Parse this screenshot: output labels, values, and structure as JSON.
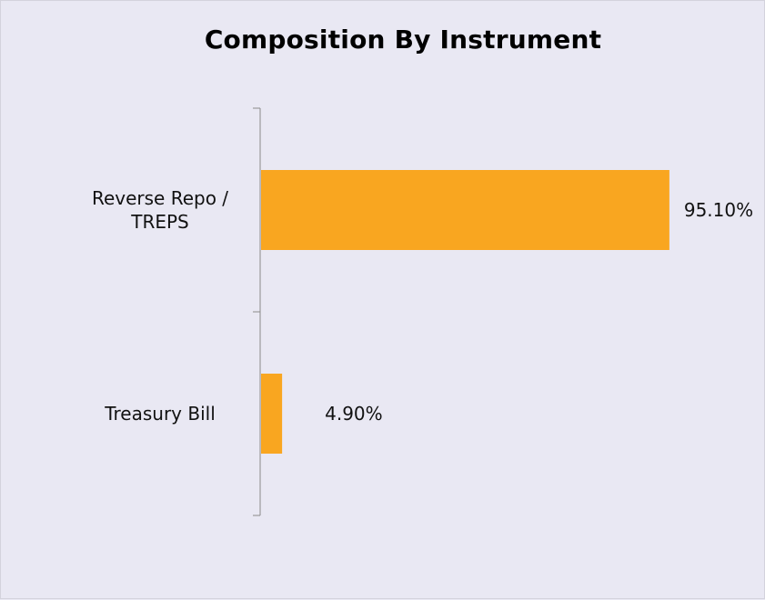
{
  "chart_data": {
    "type": "bar",
    "orientation": "horizontal",
    "title": "Composition By Instrument",
    "xlabel": "",
    "ylabel": "",
    "categories": [
      [
        "Reverse Repo /",
        "TREPS"
      ],
      [
        "Treasury Bill"
      ]
    ],
    "values": [
      95.1,
      4.9
    ],
    "value_labels": [
      "95.10%",
      "4.90%"
    ],
    "xlim": [
      0,
      100
    ],
    "grid": false,
    "legend": "none",
    "bar_color": "#f9a620",
    "background_color": "#e9e8f3",
    "axis_color": "#8a8a8a"
  }
}
